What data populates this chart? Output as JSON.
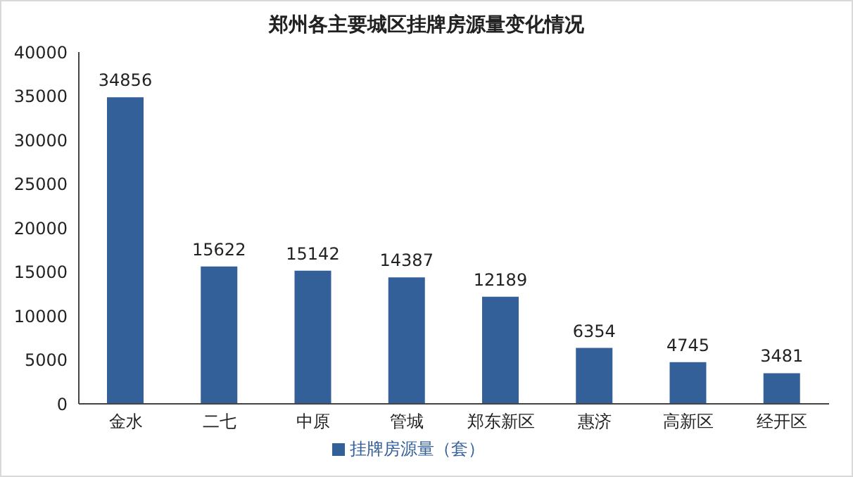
{
  "chart_data": {
    "type": "bar",
    "title": "郑州各主要城区挂牌房源量变化情况",
    "categories": [
      "金水",
      "二七",
      "中原",
      "管城",
      "郑东新区",
      "惠济",
      "高新区",
      "经开区"
    ],
    "series": [
      {
        "name": "挂牌房源量（套）",
        "color": "#34609a",
        "values": [
          34856,
          15622,
          15142,
          14387,
          12189,
          6354,
          4745,
          3481
        ]
      }
    ],
    "ylim": [
      0,
      40000
    ],
    "yticks": [
      0,
      5000,
      10000,
      15000,
      20000,
      25000,
      30000,
      35000,
      40000
    ],
    "data_labels": true,
    "legend": "bottom",
    "grid": false
  }
}
